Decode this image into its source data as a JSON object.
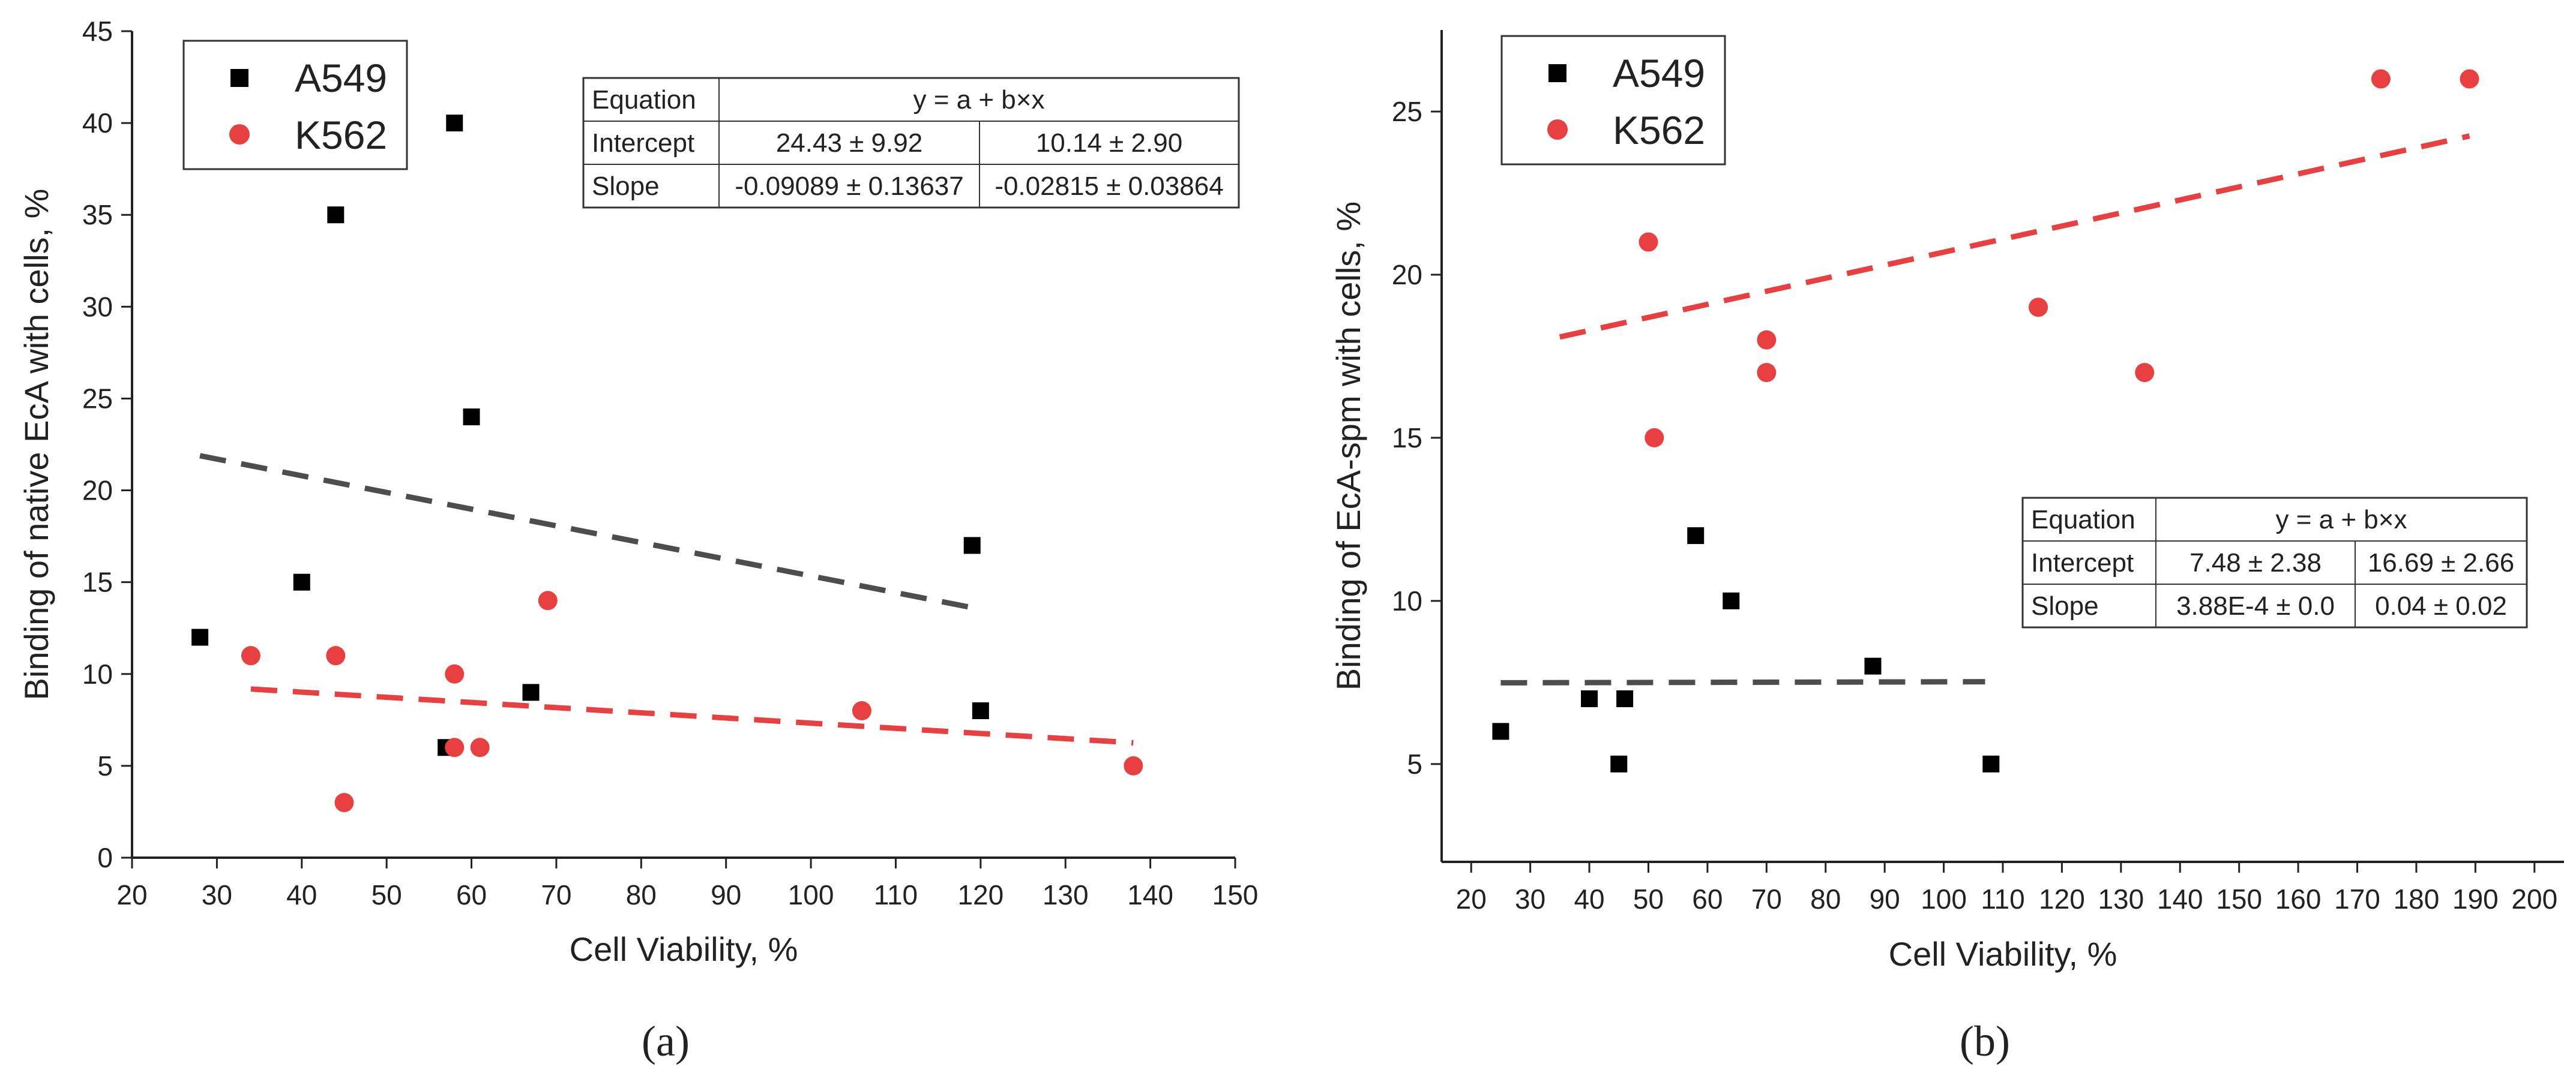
{
  "chart_data": [
    {
      "panel": "a",
      "type": "scatter",
      "caption": "(a)",
      "xlabel": "Cell Viability, %",
      "ylabel": "Binding of native EcA with cells, %",
      "xlim": [
        20,
        150
      ],
      "ylim": [
        0,
        45
      ],
      "xticks": [
        20,
        30,
        40,
        50,
        60,
        70,
        80,
        90,
        100,
        110,
        120,
        130,
        140,
        150
      ],
      "yticks": [
        0,
        5,
        10,
        15,
        20,
        25,
        30,
        35,
        40,
        45
      ],
      "legend_position": "top-left",
      "series": [
        {
          "name": "A549",
          "color": "#000000",
          "marker": "square",
          "x": [
            28,
            40,
            44,
            57,
            58,
            60,
            67,
            119,
            120
          ],
          "y": [
            12,
            15,
            35,
            6,
            40,
            24,
            9,
            17,
            8
          ],
          "fit": {
            "color": "#4d4d4d",
            "x": [
              28,
              120
            ],
            "intercept": 24.43,
            "slope": -0.09089
          }
        },
        {
          "name": "K562",
          "color": "#e84040",
          "marker": "circle",
          "x": [
            34,
            44,
            45,
            58,
            58,
            61,
            69,
            106,
            138
          ],
          "y": [
            11,
            11,
            3,
            10,
            6,
            6,
            14,
            8,
            5
          ],
          "fit": {
            "color": "#e84040",
            "x": [
              34,
              138
            ],
            "intercept": 10.14,
            "slope": -0.02815
          }
        }
      ],
      "table": {
        "rows": [
          [
            "Equation",
            "y = a + b×x"
          ],
          [
            "Intercept",
            "24.43 ± 9.92",
            "10.14 ± 2.90"
          ],
          [
            "Slope",
            "-0.09089 ± 0.13637",
            "-0.02815 ± 0.03864"
          ]
        ]
      }
    },
    {
      "panel": "b",
      "type": "scatter",
      "caption": "(b)",
      "xlabel": "Cell Viability, %",
      "ylabel": "Binding of EcA-spm with cells, %",
      "xlim": [
        15,
        205
      ],
      "ylim": [
        2,
        27.5
      ],
      "xticks": [
        20,
        30,
        40,
        50,
        60,
        70,
        80,
        90,
        100,
        110,
        120,
        130,
        140,
        150,
        160,
        170,
        180,
        190,
        200
      ],
      "yticks": [
        5,
        10,
        15,
        20,
        25
      ],
      "legend_position": "top-left",
      "series": [
        {
          "name": "A549",
          "color": "#000000",
          "marker": "square",
          "x": [
            25,
            40,
            45,
            46,
            58,
            64,
            88,
            108
          ],
          "y": [
            6,
            7,
            5,
            7,
            12,
            10,
            8,
            5
          ],
          "fit": {
            "color": "#4d4d4d",
            "x": [
              25,
              107
            ],
            "intercept": 7.48,
            "slope": 0.000388
          }
        },
        {
          "name": "K562",
          "color": "#e84040",
          "marker": "circle",
          "x": [
            50,
            51,
            70,
            70,
            116,
            134,
            174,
            189
          ],
          "y": [
            21,
            15,
            18,
            17,
            19,
            17,
            26,
            26
          ],
          "fit": {
            "color": "#e84040",
            "x": [
              35,
              189
            ],
            "intercept": 16.69,
            "slope": 0.04
          }
        }
      ],
      "table": {
        "rows": [
          [
            "Equation",
            "y = a + b×x"
          ],
          [
            "Intercept",
            "7.48 ± 2.38",
            "16.69 ± 2.66"
          ],
          [
            "Slope",
            "3.88E-4 ± 0.0",
            "0.04 ± 0.02"
          ]
        ]
      }
    }
  ]
}
